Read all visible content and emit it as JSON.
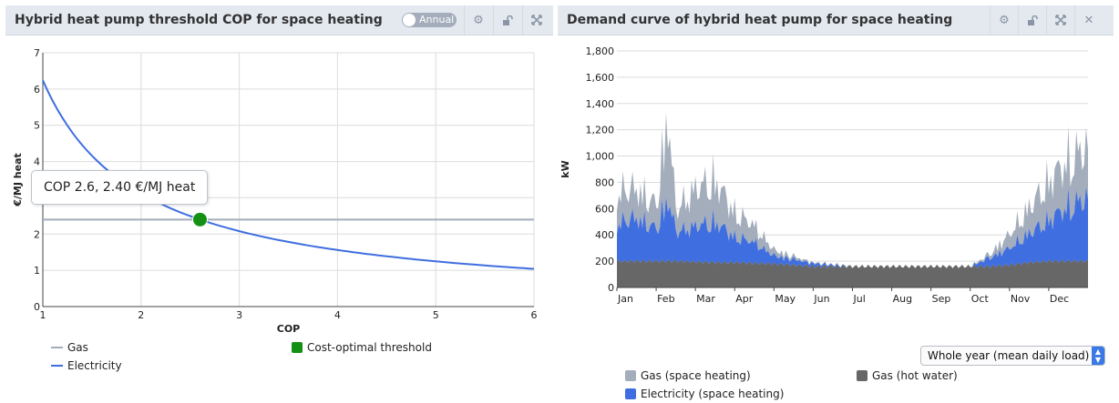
{
  "left": {
    "title": "Hybrid heat pump threshold COP for space heating",
    "toggle_label": "Annual",
    "tooltip": "COP 2.6, 2.40 €/MJ heat",
    "legend": {
      "gas": "Gas",
      "electricity": "Electricity",
      "threshold": "Cost-optimal threshold"
    },
    "icons": [
      "settings-icon",
      "unlock-icon",
      "expand-icon"
    ]
  },
  "right": {
    "title": "Demand curve of hybrid heat pump for space heating",
    "select_value": "Whole year (mean daily load)",
    "legend": {
      "gas_space": "Gas (space heating)",
      "electricity_space": "Electricity (space heating)",
      "gas_hot_water": "Gas (hot water)"
    },
    "icons": [
      "settings-icon",
      "unlock-icon",
      "expand-icon",
      "close-icon"
    ]
  },
  "colors": {
    "header_bg": "#e4e9f0",
    "gas": "#a3adbb",
    "electricity": "#3f6ee0",
    "hot_water": "#676767",
    "threshold": "#149114"
  },
  "chart_data": [
    {
      "type": "line",
      "xlabel": "COP",
      "ylabel": "€/MJ heat",
      "xlim": [
        1,
        6
      ],
      "ylim": [
        0,
        7
      ],
      "x_ticks": [
        "1",
        "2",
        "3",
        "4",
        "5",
        "6"
      ],
      "y_ticks": [
        "0",
        "1",
        "2",
        "3",
        "4",
        "5",
        "6",
        "7"
      ],
      "grid": true,
      "legend_position": "bottom",
      "series": [
        {
          "name": "Gas",
          "x": [
            1,
            6
          ],
          "values": [
            2.4,
            2.4
          ]
        },
        {
          "name": "Electricity",
          "x": [
            1,
            1.5,
            2,
            2.5,
            3,
            3.5,
            4,
            4.5,
            5,
            5.5,
            6
          ],
          "values": [
            6.24,
            4.16,
            3.12,
            2.5,
            2.08,
            1.78,
            1.56,
            1.39,
            1.25,
            1.13,
            1.04
          ]
        }
      ],
      "points": [
        {
          "name": "Cost-optimal threshold",
          "x": 2.6,
          "y": 2.4
        }
      ]
    },
    {
      "type": "area",
      "ylabel": "kW",
      "x_ticks": [
        "Jan",
        "Feb",
        "Mar",
        "Apr",
        "May",
        "Jun",
        "Jul",
        "Aug",
        "Sep",
        "Oct",
        "Nov",
        "Dec"
      ],
      "y_ticks": [
        "0",
        "200",
        "400",
        "600",
        "800",
        "1,000",
        "1,200",
        "1,400",
        "1,600",
        "1,800"
      ],
      "ylim": [
        0,
        1800
      ],
      "stacked": true,
      "grid": true,
      "legend_position": "bottom",
      "x_months": [
        0,
        0.5,
        1,
        1.3,
        1.5,
        2,
        2.5,
        3,
        3.5,
        4,
        4.5,
        5,
        6,
        7,
        8,
        8.5,
        9,
        9.5,
        10,
        10.5,
        11,
        11.5,
        12
      ],
      "series": [
        {
          "name": "Gas (hot water)",
          "values": [
            200,
            200,
            200,
            200,
            200,
            195,
            190,
            190,
            185,
            180,
            170,
            160,
            160,
            160,
            160,
            160,
            160,
            160,
            170,
            190,
            200,
            200,
            200
          ]
        },
        {
          "name": "Electricity (space heating)",
          "values": [
            380,
            440,
            330,
            640,
            300,
            360,
            410,
            260,
            210,
            80,
            60,
            30,
            0,
            0,
            0,
            0,
            0,
            90,
            170,
            290,
            420,
            560,
            640
          ]
        },
        {
          "name": "Gas (space heating)",
          "values": [
            320,
            300,
            240,
            860,
            220,
            380,
            430,
            250,
            170,
            60,
            30,
            10,
            0,
            0,
            0,
            0,
            0,
            40,
            140,
            260,
            400,
            470,
            520
          ]
        }
      ]
    }
  ]
}
